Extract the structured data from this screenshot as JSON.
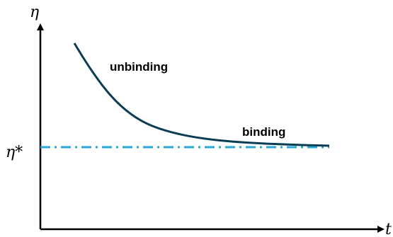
{
  "axes": {
    "y_label": "η",
    "x_label": "t",
    "threshold_label": "η*"
  },
  "annotations": {
    "unbinding": "unbinding",
    "binding": "binding"
  },
  "colors": {
    "axis": "#000000",
    "curve": "#0b3d52",
    "threshold": "#2aa7d6"
  },
  "chart_data": {
    "type": "line",
    "curve": "exponential decay toward threshold",
    "threshold_line_style": "dash-dot"
  }
}
